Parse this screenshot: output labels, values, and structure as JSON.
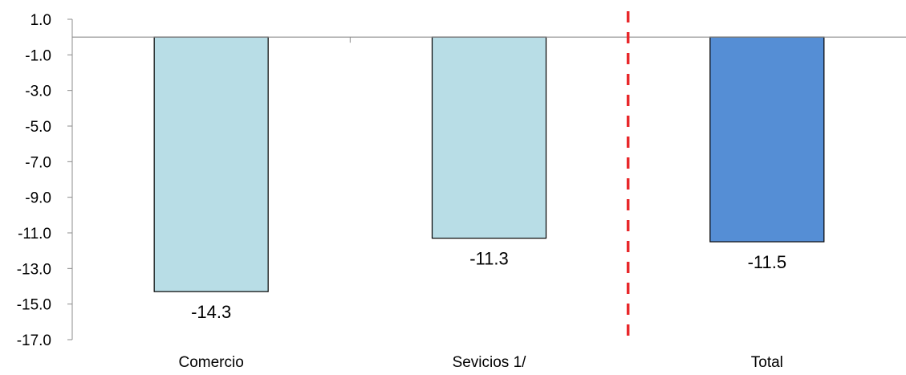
{
  "chart_data": {
    "type": "bar",
    "title": "",
    "xlabel": "",
    "ylabel": "",
    "categories": [
      "Comercio",
      "Sevicios 1/",
      "Total"
    ],
    "values": [
      -14.3,
      -11.3,
      -11.5
    ],
    "data_labels": [
      "-14.3",
      "-11.3",
      "-11.5"
    ],
    "bar_colors": [
      "#b8dde6",
      "#b8dde6",
      "#558ed5"
    ],
    "ylim": [
      -17.0,
      1.0
    ],
    "yticks": [
      1.0,
      -1.0,
      -3.0,
      -5.0,
      -7.0,
      -9.0,
      -11.0,
      -13.0,
      -15.0,
      -17.0
    ],
    "ytick_labels": [
      "1.0",
      "-1.0",
      "-3.0",
      "-5.0",
      "-7.0",
      "-9.0",
      "-11.0",
      "-13.0",
      "-15.0",
      "-17.0"
    ],
    "grid": false,
    "legend": "none",
    "separator": {
      "between": [
        "Sevicios 1/",
        "Total"
      ],
      "color": "#e8282b",
      "style": "dashed"
    }
  }
}
